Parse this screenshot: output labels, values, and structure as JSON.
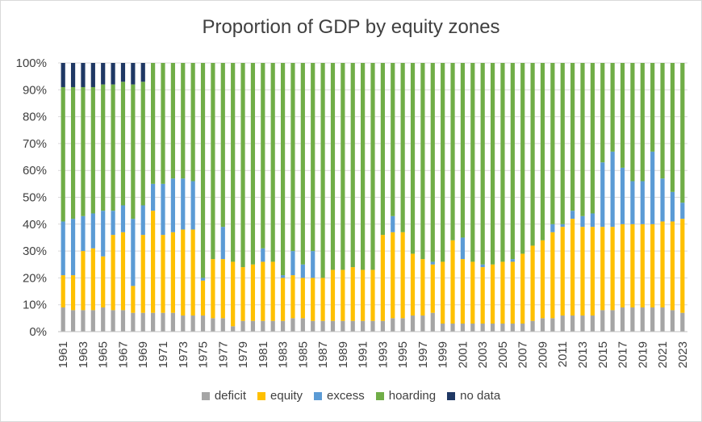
{
  "chart_data": {
    "type": "bar",
    "stacked": true,
    "title": "Proportion of GDP by equity zones",
    "xlabel": "",
    "ylabel": "",
    "ylim": [
      0,
      100
    ],
    "y_ticks": [
      "0%",
      "10%",
      "20%",
      "30%",
      "40%",
      "50%",
      "60%",
      "70%",
      "80%",
      "90%",
      "100%"
    ],
    "grid": true,
    "legend_position": "bottom",
    "categories": [
      "1961",
      "1962",
      "1963",
      "1964",
      "1965",
      "1966",
      "1967",
      "1968",
      "1969",
      "1970",
      "1971",
      "1972",
      "1973",
      "1974",
      "1975",
      "1976",
      "1977",
      "1978",
      "1979",
      "1980",
      "1981",
      "1982",
      "1983",
      "1984",
      "1985",
      "1986",
      "1987",
      "1988",
      "1989",
      "1990",
      "1991",
      "1992",
      "1993",
      "1994",
      "1995",
      "1996",
      "1997",
      "1998",
      "1999",
      "2000",
      "2001",
      "2002",
      "2003",
      "2004",
      "2005",
      "2006",
      "2007",
      "2008",
      "2009",
      "2010",
      "2011",
      "2012",
      "2013",
      "2014",
      "2015",
      "2016",
      "2017",
      "2018",
      "2019",
      "2020",
      "2021",
      "2022",
      "2023"
    ],
    "series": [
      {
        "name": "deficit",
        "color": "#a5a5a5",
        "values": [
          9,
          8,
          8,
          8,
          9,
          8,
          8,
          7,
          7,
          7,
          7,
          7,
          6,
          6,
          6,
          5,
          5,
          2,
          4,
          4,
          4,
          4,
          4,
          5,
          5,
          4,
          4,
          4,
          4,
          4,
          4,
          4,
          4,
          5,
          5,
          6,
          6,
          7,
          3,
          3,
          3,
          3,
          3,
          3,
          3,
          3,
          3,
          4,
          5,
          5,
          6,
          6,
          6,
          6,
          8,
          8,
          9,
          9,
          9,
          9,
          9,
          8,
          7
        ]
      },
      {
        "name": "equity",
        "color": "#ffc000",
        "values": [
          12,
          13,
          22,
          23,
          19,
          28,
          29,
          10,
          29,
          38,
          29,
          30,
          32,
          32,
          13,
          22,
          22,
          24,
          20,
          21,
          22,
          22,
          16,
          16,
          15,
          16,
          16,
          19,
          19,
          20,
          19,
          19,
          32,
          32,
          32,
          23,
          21,
          18,
          23,
          31,
          24,
          23,
          21,
          22,
          23,
          23,
          26,
          28,
          29,
          32,
          33,
          36,
          33,
          33,
          31,
          31,
          31,
          31,
          31,
          31,
          32,
          33,
          35
        ]
      },
      {
        "name": "excess",
        "color": "#5b9bd5",
        "values": [
          20,
          21,
          13,
          13,
          17,
          9,
          10,
          25,
          11,
          10,
          19,
          20,
          19,
          18,
          1,
          0,
          12,
          0,
          0,
          0,
          5,
          0,
          1,
          9,
          5,
          10,
          0,
          0,
          0,
          0,
          0,
          0,
          0,
          6,
          0,
          0,
          0,
          1,
          0,
          0,
          8,
          0,
          1,
          0,
          0,
          1,
          0,
          0,
          0,
          3,
          1,
          3,
          4,
          5,
          24,
          28,
          21,
          16,
          16,
          27,
          16,
          11,
          6
        ]
      },
      {
        "name": "hoarding",
        "color": "#70ad47",
        "values": [
          50,
          49,
          48,
          47,
          47,
          47,
          46,
          50,
          46,
          45,
          45,
          43,
          43,
          44,
          80,
          73,
          61,
          74,
          76,
          75,
          69,
          74,
          79,
          70,
          75,
          70,
          80,
          77,
          77,
          76,
          77,
          77,
          64,
          57,
          63,
          71,
          73,
          74,
          74,
          66,
          65,
          74,
          75,
          75,
          74,
          73,
          71,
          68,
          66,
          60,
          60,
          55,
          57,
          56,
          37,
          33,
          39,
          44,
          44,
          33,
          43,
          48,
          52
        ]
      },
      {
        "name": "no data",
        "color": "#1f3864",
        "values": [
          9,
          9,
          9,
          9,
          8,
          8,
          7,
          8,
          7,
          0,
          0,
          0,
          0,
          0,
          0,
          0,
          0,
          0,
          0,
          0,
          0,
          0,
          0,
          0,
          0,
          0,
          0,
          0,
          0,
          0,
          0,
          0,
          0,
          0,
          0,
          0,
          0,
          0,
          0,
          0,
          0,
          0,
          0,
          0,
          0,
          0,
          0,
          0,
          0,
          0,
          0,
          0,
          0,
          0,
          0,
          0,
          0,
          0,
          0,
          0,
          0,
          0,
          0
        ]
      }
    ]
  }
}
